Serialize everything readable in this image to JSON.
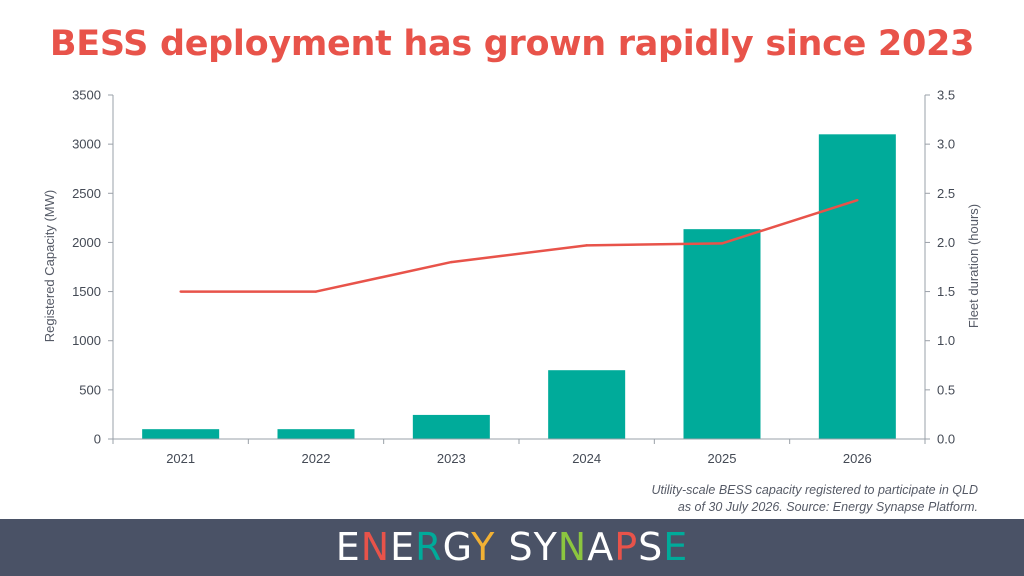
{
  "title": "BESS deployment has grown rapidly since 2023",
  "colors": {
    "title": "#e8534a",
    "bar": "#00ab9a",
    "line": "#e8534a",
    "axis": "#9aa0a8",
    "footer_bg": "#4a5266",
    "footer_text": "#ffffff"
  },
  "chart_data": {
    "type": "bar",
    "categories": [
      "2021",
      "2022",
      "2023",
      "2024",
      "2025",
      "2026"
    ],
    "series": [
      {
        "type": "bar",
        "axis": "left",
        "values": [
          100,
          100,
          245,
          700,
          2135,
          3100
        ]
      },
      {
        "type": "line",
        "axis": "right",
        "values": [
          1.5,
          1.5,
          1.8,
          1.97,
          1.99,
          2.43
        ]
      }
    ],
    "ylabel": "Registered Capacity (MW)",
    "ylim": [
      0,
      3500
    ],
    "yticks": [
      "0",
      "500",
      "1000",
      "1500",
      "2000",
      "2500",
      "3000",
      "3500"
    ],
    "ytick_values": [
      0,
      500,
      1000,
      1500,
      2000,
      2500,
      3000,
      3500
    ],
    "y2label": "Fleet duration (hours)",
    "y2lim": [
      0,
      3.5
    ],
    "y2ticks": [
      "0.0",
      "0.5",
      "1.0",
      "1.5",
      "2.0",
      "2.5",
      "3.0",
      "3.5"
    ],
    "y2tick_values": [
      0,
      0.5,
      1.0,
      1.5,
      2.0,
      2.5,
      3.0,
      3.5
    ],
    "grid": false,
    "legend": "none"
  },
  "caption": {
    "line1": "Utility-scale BESS capacity registered to participate in QLD",
    "line2": "as of 30 July 2026. Source: Energy Synapse Platform."
  },
  "footer": {
    "brand": "ENERGY SYNAPSE",
    "letter_colors": [
      "#ffffff",
      "#e8534a",
      "#ffffff",
      "#00ab9a",
      "#ffffff",
      "#f2b134",
      "#ffffff",
      "#ffffff",
      "#8cc63f",
      "#ffffff",
      "#e8534a",
      "#ffffff",
      "#00ab9a",
      "#ffffff"
    ]
  }
}
